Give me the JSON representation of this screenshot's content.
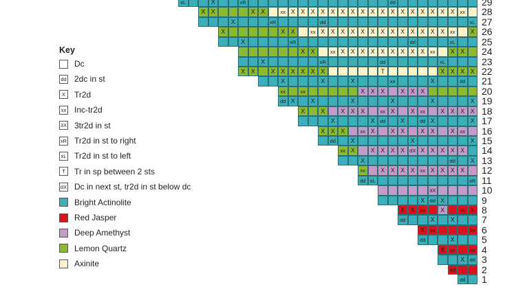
{
  "colors": {
    "B": "#3aafb9",
    "R": "#d7141e",
    "P": "#c49ac9",
    "G": "#8cb832",
    "Y": "#fdf3c8",
    "W": "#ffffff"
  },
  "key": {
    "title": "Key",
    "items": [
      {
        "box": "",
        "fill": "W",
        "label": "Dc"
      },
      {
        "box": "dd",
        "fill": "W",
        "label": "2dc in st"
      },
      {
        "box": "X",
        "fill": "W",
        "label": "Tr2d"
      },
      {
        "box": "xx",
        "fill": "W",
        "label": "Inc-tr2d"
      },
      {
        "box": "3X",
        "fill": "W",
        "label": "3tr2d in st"
      },
      {
        "box": "xR",
        "fill": "W",
        "label": "Tr2d in st to right"
      },
      {
        "box": "xL",
        "fill": "W",
        "label": "Tr2d in st to left"
      },
      {
        "box": "T",
        "fill": "W",
        "label": "Tr in sp between 2 sts"
      },
      {
        "box": "dX",
        "fill": "W",
        "label": "Dc in next st, tr2d in st below dc"
      },
      {
        "box": "",
        "fill": "B",
        "label": "Bright Actinolite"
      },
      {
        "box": "",
        "fill": "R",
        "label": "Red Jasper"
      },
      {
        "box": "",
        "fill": "P",
        "label": "Deep Amethyst"
      },
      {
        "box": "",
        "fill": "G",
        "label": "Lemon Quartz"
      },
      {
        "box": "",
        "fill": "Y",
        "label": "Axinite"
      }
    ]
  },
  "rows": [
    {
      "row": "29",
      "colors": "BBBBBBBBBBBBBBBBBBBBBBBBBBBBBB",
      "symbols": {
        "0": "xL",
        "3": "X",
        "6": "xR",
        "21": "dd"
      }
    },
    {
      "row": "28",
      "colors": "GGGGGGGYYYYYYYYYYYYYYYYYYYYY",
      "symbols": {
        "0": "X",
        "1": "X",
        "5": "X",
        "6": "X",
        "8": "xx",
        "9": "X",
        "10": "X",
        "11": "X",
        "12": "X",
        "13": "X",
        "14": "X",
        "15": "X",
        "16": "X",
        "17": "X",
        "18": "X",
        "19": "X",
        "20": "X",
        "21": "X",
        "22": "X",
        "23": "X",
        "24": "X",
        "25": "X",
        "26": "xx"
      }
    },
    {
      "row": "27",
      "colors": "BBBBBBBBBBBBBBBBBBBBBBBBBBBB",
      "symbols": {
        "3": "X",
        "7": "xR",
        "12": "dd",
        "27": "xL"
      }
    },
    {
      "row": "26",
      "colors": "GGGGGGGGYYYYYYYYYYYYYYYYYG",
      "symbols": {
        "0": "X",
        "6": "X",
        "7": "X",
        "9": "xx",
        "10": "X",
        "11": "X",
        "12": "X",
        "13": "X",
        "14": "X",
        "15": "X",
        "16": "X",
        "17": "X",
        "18": "X",
        "19": "X",
        "20": "X",
        "21": "X",
        "22": "X",
        "23": "xx",
        "25": "X"
      }
    },
    {
      "row": "25",
      "colors": "BBBBBBBBBBBBBBBBBBBBBBBBBB",
      "symbols": {
        "2": "X",
        "7": "xR",
        "19": "dd",
        "23": "xL"
      }
    },
    {
      "row": "24",
      "colors": "GGGGGGGGYYYYYYYYYYYYYGGG",
      "symbols": {
        "6": "X",
        "7": "X",
        "9": "xx",
        "10": "X",
        "11": "X",
        "12": "X",
        "13": "X",
        "14": "X",
        "15": "X",
        "16": "X",
        "17": "X",
        "18": "X",
        "19": "xx",
        "21": "X",
        "22": "X"
      }
    },
    {
      "row": "23",
      "colors": "BBBBBBBBBBBBBBBBBBBBBBBB",
      "symbols": {
        "2": "X",
        "8": "xR",
        "14": "dd",
        "20": "xL"
      }
    },
    {
      "row": "22",
      "colors": "GGGGGGGGGYYYYYYYYYYYGGGG",
      "symbols": {
        "0": "X",
        "1": "X",
        "3": "X",
        "4": "X",
        "5": "X",
        "6": "X",
        "7": "X",
        "8": "X",
        "14": "T",
        "20": "X",
        "21": "X",
        "22": "X",
        "23": "X"
      }
    },
    {
      "row": "21",
      "colors": "BBBBBBBBBBBBBBBBBBBBBB",
      "symbols": {
        "2": "X",
        "6": "X",
        "9": "X",
        "13": "xx",
        "17": "X",
        "20": "dd"
      }
    },
    {
      "row": "20",
      "colors": "GGGGGGGGPPPPPPPGGGGG",
      "symbols": {
        "0": "xx",
        "2": "xx",
        "8": "X",
        "9": "X",
        "10": "X",
        "12": "X",
        "13": "X",
        "14": "X"
      }
    },
    {
      "row": "19",
      "colors": "BBBBBBBBBBBBBBBBBBBB",
      "symbols": {
        "0": "dd",
        "1": "X",
        "3": "X",
        "7": "X",
        "11": "X",
        "15": "X",
        "19": "X"
      }
    },
    {
      "row": "18",
      "colors": "GGGPPPPPPPPPPPPPPP",
      "symbols": {
        "0": "X",
        "2": "X",
        "4": "X",
        "5": "X",
        "6": "X",
        "8": "xx",
        "9": "X",
        "11": "X",
        "12": "xx",
        "14": "X",
        "15": "X",
        "16": "X",
        "17": "X"
      }
    },
    {
      "row": "17",
      "colors": "BBBBBBBBBBBBBBBBBB",
      "symbols": {
        "3": "X",
        "7": "X",
        "8": "dd",
        "10": "X",
        "12": "dd",
        "13": "X",
        "17": "X"
      }
    },
    {
      "row": "16",
      "colors": "GGGPPPPPPPPPPPPP",
      "symbols": {
        "0": "X",
        "1": "X",
        "2": "X",
        "4": "xx",
        "5": "X",
        "7": "X",
        "8": "X",
        "10": "X",
        "11": "X",
        "13": "X",
        "14": "xx"
      }
    },
    {
      "row": "15",
      "colors": "BBBBBBBBBBBBBBBB",
      "symbols": {
        "1": "dd",
        "3": "X",
        "9": "X",
        "15": "X"
      }
    },
    {
      "row": "14",
      "colors": "GGPPPPPPPPPPPB",
      "symbols": {
        "0": "xx",
        "1": "X",
        "3": "X",
        "4": "X",
        "5": "X",
        "6": "X",
        "7": "dX",
        "8": "X",
        "9": "X",
        "10": "X",
        "11": "X",
        "12": "X"
      }
    },
    {
      "row": "13",
      "colors": "BBBBBBBBBBBBBB",
      "symbols": {
        "2": "X",
        "11": "dd",
        "13": "X"
      }
    },
    {
      "row": "12",
      "colors": "GPPPPPPPPPPP",
      "symbols": {
        "0": "xx",
        "2": "X",
        "3": "X",
        "4": "X",
        "5": "X",
        "6": "xx",
        "7": "X",
        "8": "X",
        "9": "X",
        "10": "X"
      }
    },
    {
      "row": "11",
      "colors": "BBBBBBBBBBBB",
      "symbols": {
        "0": "dd",
        "1": "xL",
        "11": "xR"
      }
    },
    {
      "row": "10",
      "colors": "PPPPPPPPPP",
      "symbols": {
        "5": "3X"
      }
    },
    {
      "row": "9",
      "colors": "BBBBBBBBBB",
      "symbols": {
        "4": "X",
        "5": "dd",
        "6": "X"
      }
    },
    {
      "row": "8",
      "colors": "RRRRPRRR",
      "symbols": {
        "0": "X",
        "1": "X",
        "2": "xx",
        "4": "X",
        "6": "xx",
        "7": "X"
      }
    },
    {
      "row": "7",
      "colors": "BBBBBBBB",
      "symbols": {
        "0": "dd",
        "3": "X",
        "5": "X"
      }
    },
    {
      "row": "6",
      "colors": "RRRRRR",
      "symbols": {
        "0": "X",
        "1": "xx",
        "5": "xx"
      }
    },
    {
      "row": "5",
      "colors": "BBBBBB",
      "symbols": {
        "0": "dd",
        "3": "X"
      }
    },
    {
      "row": "4",
      "colors": "RRRR",
      "symbols": {
        "0": "X",
        "1": "xx",
        "3": "xx"
      }
    },
    {
      "row": "3",
      "colors": "BBBB",
      "symbols": {
        "2": "X",
        "3": "dd"
      }
    },
    {
      "row": "2",
      "colors": "RRR",
      "symbols": {
        "0": "dd"
      }
    },
    {
      "row": "1",
      "colors": "BB",
      "symbols": {
        "0": "dd"
      }
    }
  ]
}
